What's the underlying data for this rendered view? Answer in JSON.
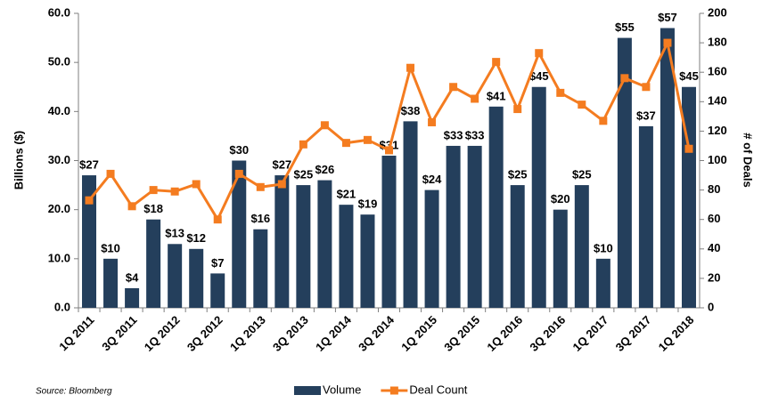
{
  "chart_data": {
    "type": "bar",
    "categories": [
      "1Q 2011",
      null,
      "3Q 2011",
      null,
      "1Q 2012",
      null,
      "3Q 2012",
      null,
      "1Q 2013",
      null,
      "3Q 2013",
      null,
      "1Q 2014",
      null,
      "3Q 2014",
      null,
      "1Q 2015",
      null,
      "3Q 2015",
      null,
      "1Q 2016",
      null,
      "3Q 2016",
      null,
      "1Q 2017",
      null,
      "3Q 2017",
      null,
      "1Q 2018"
    ],
    "series": [
      {
        "name": "Volume",
        "type": "bar",
        "color": "#243f5c",
        "values": [
          27,
          10,
          4,
          18,
          13,
          12,
          7,
          30,
          16,
          27,
          25,
          26,
          21,
          19,
          31,
          38,
          24,
          33,
          33,
          41,
          25,
          45,
          20,
          25,
          10,
          55,
          37,
          57,
          45
        ],
        "value_labels": [
          "$27",
          "$10",
          "$4",
          "$18",
          "$13",
          "$12",
          "$7",
          "$30",
          "$16",
          "$27",
          "$25",
          "$26",
          "$21",
          "$19",
          "$31",
          "$38",
          "$24",
          "$33",
          "$33",
          "$41",
          "$25",
          "$45",
          "$20",
          "$25",
          "$10",
          "$55",
          "$37",
          "$57",
          "$45"
        ]
      },
      {
        "name": "Deal Count",
        "type": "line",
        "color": "#f47c20",
        "axis": "y2",
        "values": [
          73,
          91,
          69,
          80,
          79,
          84,
          60,
          91,
          82,
          84,
          111,
          124,
          112,
          114,
          107,
          163,
          126,
          150,
          142,
          167,
          135,
          173,
          146,
          138,
          127,
          156,
          150,
          180,
          108
        ]
      }
    ],
    "ylabel": "Billions ($)",
    "y2label": "# of Deals",
    "ylim": [
      0,
      60
    ],
    "yticks": [
      {
        "value": 0,
        "label": "0.0"
      },
      {
        "value": 10,
        "label": "10.0"
      },
      {
        "value": 20,
        "label": "20.0"
      },
      {
        "value": 30,
        "label": "30.0"
      },
      {
        "value": 40,
        "label": "40.0"
      },
      {
        "value": 50,
        "label": "50.0"
      },
      {
        "value": 60,
        "label": "60.0"
      }
    ],
    "y2lim": [
      0,
      200
    ],
    "y2ticks": [
      0,
      20,
      40,
      60,
      80,
      100,
      120,
      140,
      160,
      180,
      200
    ],
    "source": "Source:  Bloomberg",
    "legend": "bottom"
  }
}
